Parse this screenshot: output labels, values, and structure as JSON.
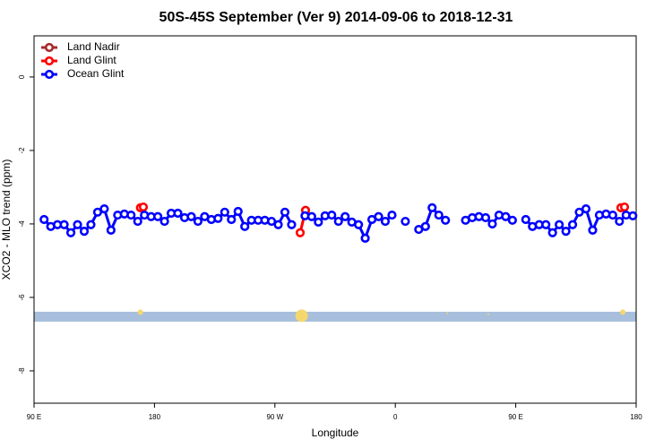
{
  "chart_data": {
    "type": "line",
    "title": "50S-45S September (Ver 9)   2014-09-06 to 2018-12-31",
    "x_label": "Longitude",
    "y_label": "XCO2 - MLO trend (ppm)",
    "xlim": [
      90,
      540
    ],
    "ylim": [
      -8.88,
      1.12
    ],
    "xticks": [
      {
        "value": 90,
        "label": "90 E"
      },
      {
        "value": 180,
        "label": "180"
      },
      {
        "value": 270,
        "label": "90 W"
      },
      {
        "value": 360,
        "label": "0"
      },
      {
        "value": 450,
        "label": "90 E"
      },
      {
        "value": 540,
        "label": "180"
      }
    ],
    "yticks": [
      0,
      -2,
      -4,
      -6,
      -8
    ],
    "legend": "top-left",
    "series": [
      {
        "name": "Land Nadir",
        "color": "#a52a2a",
        "x": [],
        "values": []
      },
      {
        "name": "Land Glint",
        "color": "#ff0000",
        "x": [
          169.5,
          171.7,
          null,
          288.9,
          292.9,
          null,
          528.6,
          531.3
        ],
        "values": [
          -3.56,
          -3.54,
          null,
          -4.24,
          -3.63,
          null,
          -3.56,
          -3.54
        ]
      },
      {
        "name": "Ocean Glint",
        "color": "#0000ff",
        "x": [
          97.5,
          102.5,
          107.5,
          112.5,
          117.5,
          122.5,
          127.5,
          132.5,
          137.5,
          142.5,
          147.5,
          152.5,
          157.5,
          162.5,
          167.5,
          172.5,
          177.5,
          182.5,
          187.5,
          192.5,
          197.5,
          202.5,
          207.5,
          212.5,
          217.5,
          222.5,
          227.5,
          232.5,
          237.5,
          242.5,
          247.5,
          252.5,
          257.5,
          262.5,
          267.5,
          272.5,
          277.5,
          282.5,
          287.5,
          292.5,
          297.5,
          302.5,
          307.5,
          312.5,
          317.5,
          322.5,
          327.5,
          332.5,
          337.5,
          342.5,
          347.5,
          352.5,
          357.5,
          362.5,
          367.5,
          372.5,
          377.5,
          382.5,
          387.5,
          392.5,
          397.5,
          402.5,
          407.5,
          412.5,
          417.5,
          422.5,
          427.5,
          432.5,
          437.5,
          442.5,
          447.5,
          452.5,
          457.5,
          462.5,
          467.5,
          472.5,
          477.5,
          482.5,
          487.5,
          492.5,
          497.5,
          502.5,
          507.5,
          512.5,
          517.5,
          522.5,
          527.5,
          532.5,
          537.5
        ],
        "values": [
          -3.88,
          -4.07,
          -4.02,
          -4.02,
          -4.24,
          -4.02,
          -4.2,
          -4.02,
          -3.68,
          -3.59,
          -4.17,
          -3.76,
          -3.73,
          -3.76,
          -3.93,
          -3.76,
          -3.8,
          -3.8,
          -3.93,
          -3.71,
          -3.71,
          -3.83,
          -3.8,
          -3.93,
          -3.8,
          -3.88,
          -3.85,
          -3.68,
          -3.88,
          -3.66,
          -4.07,
          -3.9,
          -3.9,
          -3.9,
          -3.93,
          -4.02,
          -3.68,
          -4.02,
          null,
          -3.78,
          -3.8,
          -3.95,
          -3.78,
          -3.76,
          -3.93,
          -3.8,
          -3.95,
          -4.02,
          -4.39,
          -3.88,
          -3.8,
          -3.93,
          -3.76,
          null,
          -3.93,
          null,
          -4.15,
          -4.07,
          -3.56,
          -3.76,
          -3.9,
          null,
          null,
          -3.9,
          -3.83,
          -3.8,
          -3.83,
          -4.0,
          -3.76,
          -3.8,
          -3.9,
          null,
          -3.88,
          -4.07,
          -4.02,
          -4.02,
          -4.24,
          -4.02,
          -4.2,
          -4.02,
          -3.68,
          -3.59,
          -4.17,
          -3.76,
          -3.73,
          -3.76,
          -3.93,
          -3.76,
          -3.78
        ]
      }
    ],
    "band": {
      "ymin": -6.66,
      "ymax": -6.39,
      "color": "#a7bfdc"
    },
    "overlay": {
      "color": "#f5d76e",
      "x": [
        169.5,
        290,
        399,
        429.5,
        530
      ],
      "values": [
        -6.4,
        -6.5,
        -6.43,
        -6.46,
        -6.4
      ],
      "sizes": [
        3,
        7,
        1,
        1,
        3
      ]
    }
  }
}
